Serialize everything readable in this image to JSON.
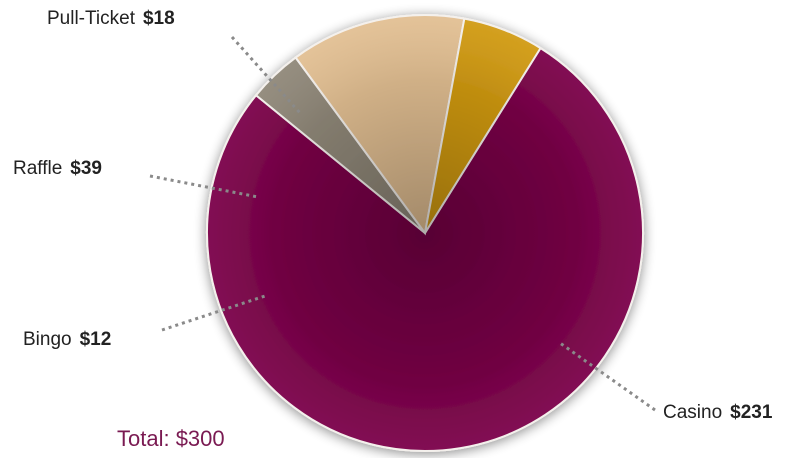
{
  "chart_data": {
    "type": "pie",
    "slices": [
      {
        "name": "Casino",
        "value_label": "$231",
        "value": 231,
        "color": "#7a0048"
      },
      {
        "name": "Bingo",
        "value_label": "$12",
        "value": 12,
        "color": "#8f8778"
      },
      {
        "name": "Raffle",
        "value_label": "$39",
        "value": 39,
        "color": "#e2bf92"
      },
      {
        "name": "Pull-Ticket",
        "value_label": "$18",
        "value": 18,
        "color": "#d19a12"
      }
    ],
    "total_label": "Total: $300"
  }
}
